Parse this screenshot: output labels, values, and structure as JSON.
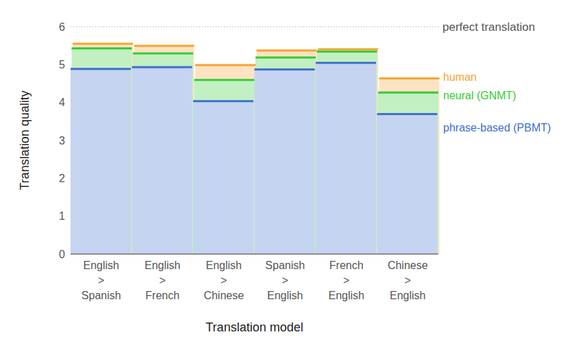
{
  "chart_data": {
    "type": "bar",
    "x_label": "Translation model",
    "y_label": "Translation quality",
    "categories": [
      "English > Spanish",
      "English > French",
      "English > Chinese",
      "Spanish > English",
      "French > English",
      "Chinese > English"
    ],
    "series": [
      {
        "name": "phrase-based (PBMT)",
        "color": "#3d6fce",
        "values": [
          4.885,
          4.932,
          4.035,
          4.872,
          5.046,
          3.694
        ]
      },
      {
        "name": "neural (GNMT)",
        "color": "#33cc33",
        "values": [
          5.428,
          5.295,
          4.594,
          5.187,
          5.343,
          4.263
        ]
      },
      {
        "name": "human",
        "color": "#f9a332",
        "values": [
          5.55,
          5.496,
          4.987,
          5.372,
          5.404,
          4.636
        ]
      }
    ],
    "ylim": [
      0,
      6
    ],
    "yticks": [
      0,
      1,
      2,
      3,
      4,
      5,
      6
    ],
    "grid": false,
    "stacked": false,
    "legend": "right",
    "annotations": [
      {
        "text": "perfect translation",
        "y": 6
      }
    ]
  }
}
